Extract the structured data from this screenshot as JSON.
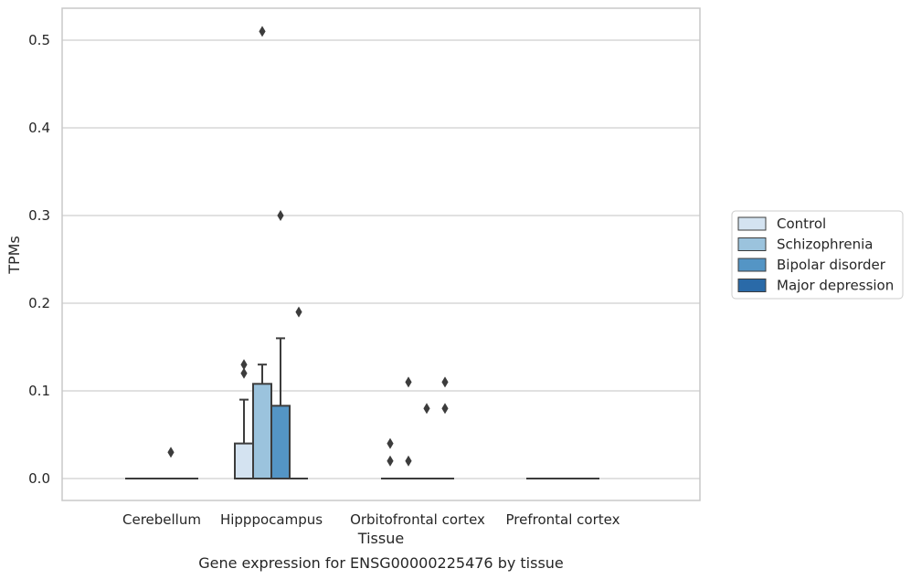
{
  "caption": "Gene expression for ENSG00000225476 by tissue",
  "colors": {
    "Control": "#d4e3f1",
    "Schizophrenia": "#9bc3dd",
    "Bipolar disorder": "#5495c5",
    "Major depression": "#2a6aa8",
    "line": "#3c3c3c",
    "grid": "#cfcfcf",
    "frame": "#c8c8c8"
  },
  "chart_data": {
    "type": "box",
    "xlabel": "Tissue",
    "ylabel": "TPMs",
    "ylim": [
      -0.025,
      0.537
    ],
    "yticks": [
      0.0,
      0.1,
      0.2,
      0.3,
      0.4,
      0.5
    ],
    "ytick_labels": [
      "0.0",
      "0.1",
      "0.2",
      "0.3",
      "0.4",
      "0.5"
    ],
    "grid": true,
    "legend_position": "right",
    "categories": [
      "Cerebellum",
      "Hipppocampus",
      "Orbitofrontal cortex",
      "Prefrontal cortex"
    ],
    "series": [
      {
        "name": "Control",
        "boxes": [
          {
            "q1": 0,
            "median": 0,
            "q3": 0,
            "whisker_low": 0,
            "whisker_high": 0,
            "outliers": []
          },
          {
            "q1": 0,
            "median": 0,
            "q3": 0.04,
            "whisker_low": 0,
            "whisker_high": 0.09,
            "outliers": [
              0.12,
              0.13
            ]
          },
          {
            "q1": 0,
            "median": 0,
            "q3": 0,
            "whisker_low": 0,
            "whisker_high": 0,
            "outliers": [
              0.02,
              0.04
            ]
          },
          {
            "q1": 0,
            "median": 0,
            "q3": 0,
            "whisker_low": 0,
            "whisker_high": 0,
            "outliers": []
          }
        ]
      },
      {
        "name": "Schizophrenia",
        "boxes": [
          {
            "q1": 0,
            "median": 0,
            "q3": 0,
            "whisker_low": 0,
            "whisker_high": 0,
            "outliers": []
          },
          {
            "q1": 0,
            "median": 0,
            "q3": 0.108,
            "whisker_low": 0,
            "whisker_high": 0.13,
            "outliers": [
              0.51
            ]
          },
          {
            "q1": 0,
            "median": 0,
            "q3": 0,
            "whisker_low": 0,
            "whisker_high": 0,
            "outliers": [
              0.02,
              0.11
            ]
          },
          {
            "q1": 0,
            "median": 0,
            "q3": 0,
            "whisker_low": 0,
            "whisker_high": 0,
            "outliers": []
          }
        ]
      },
      {
        "name": "Bipolar disorder",
        "boxes": [
          {
            "q1": 0,
            "median": 0,
            "q3": 0,
            "whisker_low": 0,
            "whisker_high": 0,
            "outliers": [
              0.03
            ]
          },
          {
            "q1": 0,
            "median": 0,
            "q3": 0.083,
            "whisker_low": 0,
            "whisker_high": 0.16,
            "outliers": [
              0.3
            ]
          },
          {
            "q1": 0,
            "median": 0,
            "q3": 0,
            "whisker_low": 0,
            "whisker_high": 0,
            "outliers": [
              0.08
            ]
          },
          {
            "q1": 0,
            "median": 0,
            "q3": 0,
            "whisker_low": 0,
            "whisker_high": 0,
            "outliers": []
          }
        ]
      },
      {
        "name": "Major depression",
        "boxes": [
          {
            "q1": 0,
            "median": 0,
            "q3": 0,
            "whisker_low": 0,
            "whisker_high": 0,
            "outliers": []
          },
          {
            "q1": 0,
            "median": 0,
            "q3": 0,
            "whisker_low": 0,
            "whisker_high": 0,
            "outliers": [
              0.19
            ]
          },
          {
            "q1": 0,
            "median": 0,
            "q3": 0,
            "whisker_low": 0,
            "whisker_high": 0,
            "outliers": [
              0.08,
              0.11
            ]
          },
          {
            "q1": 0,
            "median": 0,
            "q3": 0,
            "whisker_low": 0,
            "whisker_high": 0,
            "outliers": []
          }
        ]
      }
    ]
  }
}
